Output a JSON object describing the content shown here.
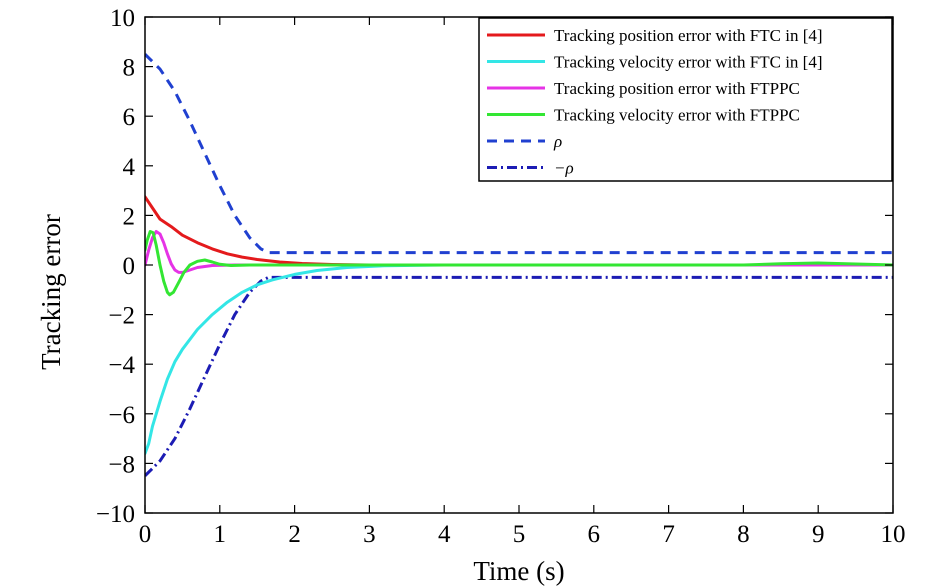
{
  "chart_data": {
    "type": "line",
    "xlabel": "Time (s)",
    "ylabel": "Tracking error",
    "xlim": [
      0,
      10
    ],
    "ylim": [
      -10,
      10
    ],
    "xticks": [
      "0",
      "1",
      "2",
      "3",
      "4",
      "5",
      "6",
      "7",
      "8",
      "9",
      "10"
    ],
    "yticks": [
      "10",
      "8",
      "6",
      "4",
      "2",
      "0",
      "−2",
      "−4",
      "−6",
      "−8",
      "−10"
    ],
    "grid": false,
    "legend_position": "top-right",
    "series": [
      {
        "name": "Tracking position error with FTC in [4]",
        "color": "#e41a1c",
        "dash": "solid",
        "points": [
          [
            0,
            2.75
          ],
          [
            0.1,
            2.3
          ],
          [
            0.2,
            1.85
          ],
          [
            0.35,
            1.55
          ],
          [
            0.5,
            1.2
          ],
          [
            0.7,
            0.9
          ],
          [
            0.9,
            0.65
          ],
          [
            1.1,
            0.45
          ],
          [
            1.3,
            0.32
          ],
          [
            1.5,
            0.22
          ],
          [
            1.8,
            0.12
          ],
          [
            2.1,
            0.06
          ],
          [
            2.5,
            0.02
          ],
          [
            3,
            0.0
          ],
          [
            10,
            0.0
          ]
        ]
      },
      {
        "name": "Tracking velocity error with FTC in [4]",
        "color": "#33e6e6",
        "dash": "solid",
        "points": [
          [
            0,
            -7.6
          ],
          [
            0.05,
            -7.2
          ],
          [
            0.1,
            -6.5
          ],
          [
            0.2,
            -5.5
          ],
          [
            0.3,
            -4.6
          ],
          [
            0.4,
            -3.9
          ],
          [
            0.5,
            -3.4
          ],
          [
            0.7,
            -2.6
          ],
          [
            0.9,
            -2.0
          ],
          [
            1.1,
            -1.5
          ],
          [
            1.3,
            -1.1
          ],
          [
            1.5,
            -0.8
          ],
          [
            1.7,
            -0.6
          ],
          [
            2.0,
            -0.38
          ],
          [
            2.3,
            -0.22
          ],
          [
            2.7,
            -0.1
          ],
          [
            3.2,
            -0.03
          ],
          [
            4,
            0.0
          ],
          [
            10,
            0.0
          ]
        ]
      },
      {
        "name": "Tracking position error with FTPPC",
        "color": "#e633e6",
        "dash": "solid",
        "points": [
          [
            0,
            0.0
          ],
          [
            0.05,
            0.6
          ],
          [
            0.1,
            1.1
          ],
          [
            0.15,
            1.35
          ],
          [
            0.2,
            1.25
          ],
          [
            0.25,
            0.9
          ],
          [
            0.3,
            0.45
          ],
          [
            0.35,
            0.05
          ],
          [
            0.4,
            -0.2
          ],
          [
            0.45,
            -0.3
          ],
          [
            0.5,
            -0.3
          ],
          [
            0.6,
            -0.2
          ],
          [
            0.7,
            -0.1
          ],
          [
            0.9,
            -0.02
          ],
          [
            1.2,
            0.0
          ],
          [
            10,
            0.0
          ]
        ]
      },
      {
        "name": "Tracking velocity error with FTPPC",
        "color": "#33e633",
        "dash": "solid",
        "points": [
          [
            0,
            0.6
          ],
          [
            0.03,
            1.0
          ],
          [
            0.07,
            1.35
          ],
          [
            0.11,
            1.3
          ],
          [
            0.15,
            0.8
          ],
          [
            0.2,
            0.0
          ],
          [
            0.25,
            -0.65
          ],
          [
            0.3,
            -1.1
          ],
          [
            0.33,
            -1.2
          ],
          [
            0.38,
            -1.1
          ],
          [
            0.45,
            -0.7
          ],
          [
            0.52,
            -0.3
          ],
          [
            0.6,
            0.0
          ],
          [
            0.7,
            0.15
          ],
          [
            0.8,
            0.2
          ],
          [
            0.9,
            0.12
          ],
          [
            1.0,
            0.03
          ],
          [
            1.15,
            -0.02
          ],
          [
            1.4,
            0.0
          ],
          [
            8.0,
            0.0
          ],
          [
            8.5,
            0.05
          ],
          [
            9.0,
            0.08
          ],
          [
            9.5,
            0.04
          ],
          [
            10,
            0.0
          ]
        ]
      },
      {
        "name": "ρ",
        "color": "#2040d0",
        "dash": "dashed",
        "points": [
          [
            0,
            8.5
          ],
          [
            0.2,
            7.9
          ],
          [
            0.4,
            7.0
          ],
          [
            0.6,
            5.8
          ],
          [
            0.8,
            4.5
          ],
          [
            1.0,
            3.2
          ],
          [
            1.2,
            2.0
          ],
          [
            1.4,
            1.1
          ],
          [
            1.55,
            0.65
          ],
          [
            1.65,
            0.5
          ],
          [
            10,
            0.5
          ]
        ]
      },
      {
        "name": "−ρ",
        "color": "#1c1cb4",
        "dash": "dashdot",
        "points": [
          [
            0,
            -8.5
          ],
          [
            0.2,
            -7.9
          ],
          [
            0.4,
            -7.0
          ],
          [
            0.6,
            -5.8
          ],
          [
            0.8,
            -4.5
          ],
          [
            1.0,
            -3.2
          ],
          [
            1.2,
            -2.0
          ],
          [
            1.4,
            -1.1
          ],
          [
            1.55,
            -0.65
          ],
          [
            1.65,
            -0.5
          ],
          [
            10,
            -0.5
          ]
        ]
      }
    ]
  }
}
